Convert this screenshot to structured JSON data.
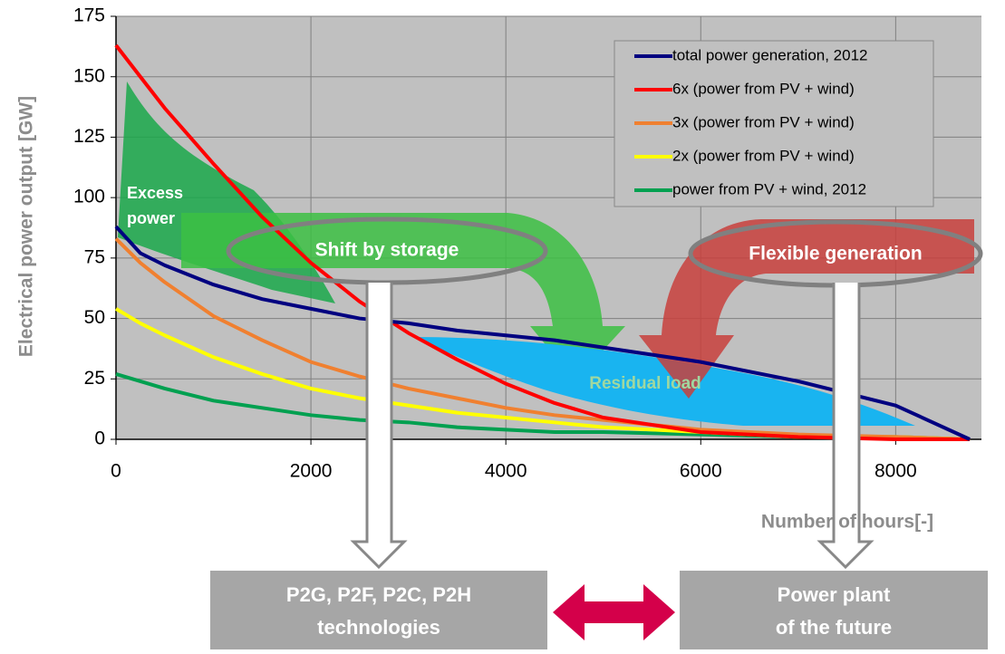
{
  "chart_data": {
    "type": "line",
    "x_label": "Number of hours[-]",
    "y_label": "Electrical power output  [GW]",
    "x": [
      0,
      250,
      500,
      1000,
      1500,
      2000,
      2500,
      3000,
      3500,
      4000,
      4500,
      5000,
      6000,
      7000,
      8000,
      8760
    ],
    "series": [
      {
        "name": "total power generation, 2012",
        "color": "#000080",
        "values": [
          88,
          77,
          72,
          64,
          58,
          54,
          50,
          48,
          45,
          43,
          41,
          38,
          32,
          24,
          14,
          0
        ]
      },
      {
        "name": "6x (power from PV + wind)",
        "color": "#ff0000",
        "values": [
          163,
          150,
          137,
          114,
          92,
          73,
          57,
          44,
          33,
          23,
          15,
          9,
          3,
          1,
          0,
          0
        ]
      },
      {
        "name": "3x (power from PV + wind)",
        "color": "#f08030",
        "values": [
          83,
          73,
          65,
          51,
          41,
          32,
          26,
          21,
          17,
          13,
          10,
          8,
          4,
          2,
          1,
          0
        ]
      },
      {
        "name": "2x (power from PV + wind)",
        "color": "#ffff00",
        "values": [
          54,
          48,
          43,
          34,
          27,
          21,
          17,
          14,
          11,
          9,
          7,
          5,
          3,
          1,
          1,
          0
        ]
      },
      {
        "name": "power from PV + wind, 2012",
        "color": "#00a050",
        "values": [
          27,
          24,
          21,
          16,
          13,
          10,
          8,
          7,
          5,
          4,
          3,
          3,
          2,
          1,
          1,
          0
        ]
      }
    ],
    "xlim": [
      0,
      8880
    ],
    "xticks": [
      0,
      2000,
      4000,
      6000,
      8000
    ],
    "ylim": [
      0,
      175
    ],
    "yticks": [
      0,
      25,
      50,
      75,
      100,
      125,
      150,
      175
    ],
    "grid": true,
    "legend": "upper right",
    "annotations": {
      "excess_power": [
        "Excess",
        "power"
      ],
      "shift_by_storage": "Shift by storage",
      "flexible_generation": "Flexible generation",
      "residual_load": "Residual load",
      "technologies_box": [
        "P2G, P2F, P2C, P2H",
        "technologies"
      ],
      "power_plant_box": [
        "Power plant",
        "of the future"
      ]
    }
  }
}
